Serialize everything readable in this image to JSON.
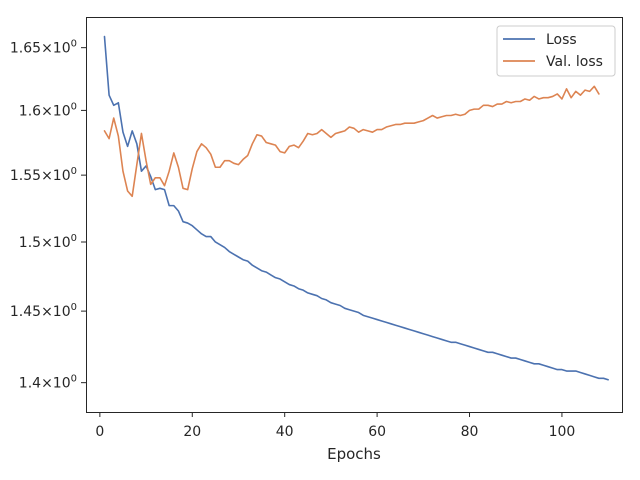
{
  "chart_data": {
    "type": "line",
    "title": "",
    "xlabel": "Epochs",
    "ylabel": "",
    "y_scale": "log",
    "xlim": [
      -3,
      113
    ],
    "ylim": [
      1.38,
      1.675
    ],
    "grid": false,
    "legend_position": "top-right",
    "x_ticks": [
      {
        "value": 0,
        "label": "0"
      },
      {
        "value": 20,
        "label": "20"
      },
      {
        "value": 40,
        "label": "40"
      },
      {
        "value": 60,
        "label": "60"
      },
      {
        "value": 80,
        "label": "80"
      },
      {
        "value": 100,
        "label": "100"
      }
    ],
    "y_ticks": [
      {
        "value": 1.4,
        "base": "1.4",
        "sep": "×",
        "pow": "10",
        "exp": "0"
      },
      {
        "value": 1.45,
        "base": "1.45",
        "sep": "×",
        "pow": "10",
        "exp": "0"
      },
      {
        "value": 1.5,
        "base": "1.5",
        "sep": "×",
        "pow": "10",
        "exp": "0"
      },
      {
        "value": 1.55,
        "base": "1.55",
        "sep": "×",
        "pow": "10",
        "exp": "0"
      },
      {
        "value": 1.6,
        "base": "1.6",
        "sep": "×",
        "pow": "10",
        "exp": "0"
      },
      {
        "value": 1.65,
        "base": "1.65",
        "sep": "×",
        "pow": "10",
        "exp": "0"
      }
    ],
    "series": [
      {
        "name": "Loss",
        "color": "#4c72b0",
        "x_start": 1,
        "values": [
          1.659,
          1.612,
          1.604,
          1.606,
          1.583,
          1.572,
          1.584,
          1.574,
          1.553,
          1.557,
          1.549,
          1.539,
          1.54,
          1.539,
          1.527,
          1.527,
          1.523,
          1.515,
          1.514,
          1.512,
          1.509,
          1.506,
          1.504,
          1.504,
          1.5,
          1.498,
          1.496,
          1.493,
          1.491,
          1.489,
          1.487,
          1.486,
          1.483,
          1.481,
          1.479,
          1.478,
          1.476,
          1.474,
          1.473,
          1.471,
          1.469,
          1.468,
          1.466,
          1.465,
          1.463,
          1.462,
          1.461,
          1.459,
          1.458,
          1.456,
          1.455,
          1.454,
          1.452,
          1.451,
          1.45,
          1.449,
          1.447,
          1.446,
          1.445,
          1.444,
          1.443,
          1.442,
          1.441,
          1.44,
          1.439,
          1.438,
          1.437,
          1.436,
          1.435,
          1.434,
          1.433,
          1.432,
          1.431,
          1.43,
          1.429,
          1.428,
          1.428,
          1.427,
          1.426,
          1.425,
          1.424,
          1.423,
          1.422,
          1.421,
          1.421,
          1.42,
          1.419,
          1.418,
          1.417,
          1.417,
          1.416,
          1.415,
          1.414,
          1.413,
          1.413,
          1.412,
          1.411,
          1.41,
          1.409,
          1.409,
          1.408,
          1.408,
          1.408,
          1.407,
          1.406,
          1.405,
          1.404,
          1.403,
          1.403,
          1.402
        ]
      },
      {
        "name": "Val. loss",
        "color": "#dd8452",
        "x_start": 1,
        "values": [
          1.584,
          1.578,
          1.594,
          1.58,
          1.553,
          1.538,
          1.534,
          1.558,
          1.582,
          1.561,
          1.543,
          1.548,
          1.548,
          1.542,
          1.553,
          1.567,
          1.556,
          1.54,
          1.539,
          1.555,
          1.568,
          1.574,
          1.571,
          1.566,
          1.556,
          1.556,
          1.561,
          1.561,
          1.559,
          1.558,
          1.562,
          1.565,
          1.574,
          1.581,
          1.58,
          1.575,
          1.574,
          1.573,
          1.568,
          1.567,
          1.572,
          1.573,
          1.571,
          1.576,
          1.582,
          1.581,
          1.582,
          1.585,
          1.582,
          1.579,
          1.582,
          1.583,
          1.584,
          1.587,
          1.586,
          1.583,
          1.585,
          1.584,
          1.583,
          1.585,
          1.585,
          1.587,
          1.588,
          1.589,
          1.589,
          1.59,
          1.59,
          1.59,
          1.591,
          1.592,
          1.594,
          1.596,
          1.594,
          1.595,
          1.596,
          1.596,
          1.597,
          1.596,
          1.597,
          1.6,
          1.601,
          1.601,
          1.604,
          1.604,
          1.603,
          1.605,
          1.605,
          1.607,
          1.606,
          1.607,
          1.607,
          1.609,
          1.608,
          1.611,
          1.609,
          1.61,
          1.61,
          1.611,
          1.613,
          1.609,
          1.617,
          1.61,
          1.615,
          1.612,
          1.616,
          1.615,
          1.619,
          1.613
        ]
      }
    ]
  }
}
